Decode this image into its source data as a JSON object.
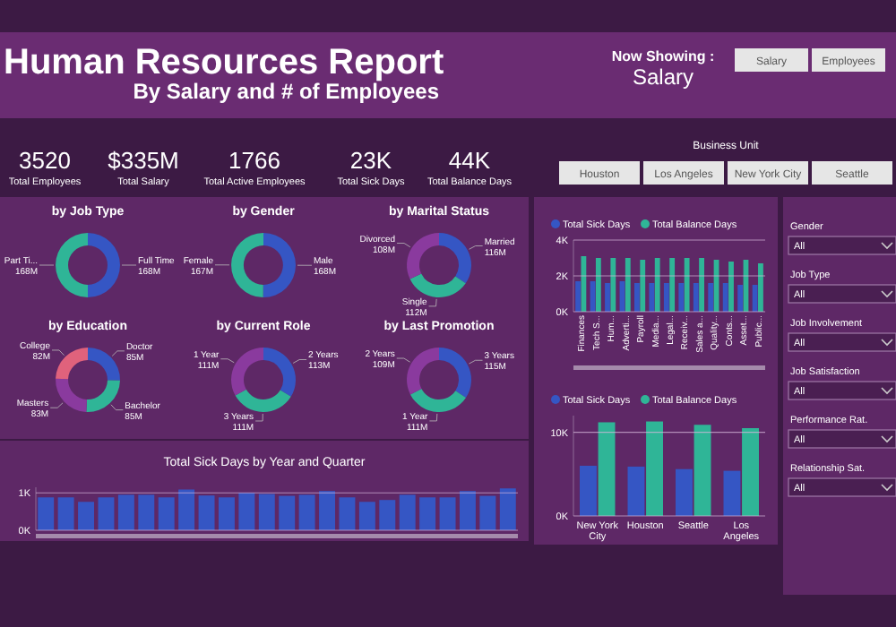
{
  "chart_data": [
    {
      "type": "other",
      "title": "Human Resources Report",
      "subtitle": "By Salary and # of Employees",
      "annotations": [
        "Now Showing :",
        "Salary",
        "Salary",
        "Employees"
      ]
    },
    {
      "type": "other",
      "annotations": [
        "3520",
        "Total Employees",
        "$335M",
        "Total Salary",
        "1766",
        "Total Active Employees",
        "23K",
        "Total Sick Days",
        "44K",
        "Total Balance Days"
      ]
    },
    {
      "type": "other",
      "title": "Business Unit",
      "annotations": [
        "Houston",
        "Los Angeles",
        "New York City",
        "Seattle"
      ]
    },
    {
      "type": "donut",
      "title": "by Job Type",
      "categories": [
        "Full Time",
        "Part Ti..."
      ],
      "values": [
        168,
        168
      ],
      "value_labels": [
        "168M",
        "168M"
      ],
      "colors": [
        "#3556c4",
        "#2fb597"
      ]
    },
    {
      "type": "donut",
      "title": "by Gender",
      "categories": [
        "Male",
        "Female"
      ],
      "values": [
        168,
        167
      ],
      "value_labels": [
        "168M",
        "167M"
      ],
      "colors": [
        "#3556c4",
        "#2fb597"
      ]
    },
    {
      "type": "donut",
      "title": "by Marital Status",
      "categories": [
        "Married",
        "Single",
        "Divorced"
      ],
      "values": [
        116,
        112,
        108
      ],
      "value_labels": [
        "116M",
        "112M",
        "108M"
      ],
      "colors": [
        "#3556c4",
        "#2fb597",
        "#8a3a9e"
      ]
    },
    {
      "type": "donut",
      "title": "by Education",
      "categories": [
        "Doctor",
        "Bachelor",
        "Masters",
        "College"
      ],
      "values": [
        85,
        85,
        83,
        82
      ],
      "value_labels": [
        "85M",
        "85M",
        "83M",
        "82M"
      ],
      "colors": [
        "#3556c4",
        "#2fb597",
        "#8a3a9e",
        "#e0627c"
      ]
    },
    {
      "type": "donut",
      "title": "by Current Role",
      "categories": [
        "2 Years",
        "3 Years",
        "1 Year"
      ],
      "values": [
        113,
        111,
        111
      ],
      "value_labels": [
        "113M",
        "111M",
        "111M"
      ],
      "colors": [
        "#3556c4",
        "#2fb597",
        "#8a3a9e"
      ]
    },
    {
      "type": "donut",
      "title": "by Last Promotion",
      "categories": [
        "3 Years",
        "1 Year",
        "2 Years"
      ],
      "values": [
        115,
        111,
        109
      ],
      "value_labels": [
        "115M",
        "111M",
        "109M"
      ],
      "colors": [
        "#3556c4",
        "#2fb597",
        "#8a3a9e"
      ]
    },
    {
      "type": "bar",
      "categories": [
        "Finances",
        "Tech S...",
        "Hum...",
        "Adverti...",
        "Payroll",
        "Media...",
        "Legal...",
        "Receiv...",
        "Sales a...",
        "Quality...",
        "Conts...",
        "Asset...",
        "Public..."
      ],
      "ylim": [
        0,
        4000
      ],
      "yticks": [
        {
          "value": 0,
          "label": "0K"
        },
        {
          "value": 2000,
          "label": "2K"
        },
        {
          "value": 4000,
          "label": "4K"
        }
      ],
      "grid": "y",
      "legend": "top left",
      "series": [
        {
          "name": "Total Sick Days",
          "color": "#3556c4",
          "values": [
            1700,
            1700,
            1600,
            1700,
            1600,
            1600,
            1600,
            1600,
            1600,
            1600,
            1600,
            1500,
            1500
          ]
        },
        {
          "name": "Total Balance Days",
          "color": "#2fb597",
          "values": [
            3100,
            3000,
            3000,
            3000,
            2900,
            3000,
            3000,
            3000,
            3000,
            2900,
            2800,
            2900,
            2700
          ]
        }
      ]
    },
    {
      "type": "bar",
      "categories": [
        "New York City",
        "Houston",
        "Seattle",
        "Los Angeles"
      ],
      "ylim": [
        0,
        12000
      ],
      "yticks": [
        {
          "value": 0,
          "label": "0K"
        },
        {
          "value": 10000,
          "label": "10K"
        }
      ],
      "grid": "y",
      "legend": "top left",
      "series": [
        {
          "name": "Total Sick Days",
          "color": "#3556c4",
          "values": [
            6000,
            5900,
            5600,
            5400
          ]
        },
        {
          "name": "Total Balance Days",
          "color": "#2fb597",
          "values": [
            11200,
            11300,
            10900,
            10500
          ]
        }
      ]
    },
    {
      "type": "bar",
      "title": "Total Sick Days by Year and Quarter",
      "categories": [
        null,
        null,
        null,
        null,
        null,
        null,
        null,
        null,
        null,
        null,
        null,
        null,
        null,
        null,
        null,
        null,
        null,
        null,
        null,
        null,
        null,
        null,
        null,
        null
      ],
      "ylim": [
        0,
        1150
      ],
      "yticks": [
        {
          "value": 0,
          "label": "0K"
        },
        {
          "value": 1000,
          "label": "1K"
        }
      ],
      "grid": "y",
      "series": [
        {
          "color": "#3556c4",
          "values": [
            880,
            880,
            760,
            880,
            950,
            950,
            880,
            1090,
            930,
            880,
            1000,
            970,
            920,
            950,
            1050,
            880,
            760,
            810,
            950,
            880,
            880,
            1050,
            920,
            1120
          ]
        }
      ]
    },
    {
      "type": "other",
      "annotations": [
        "Gender",
        "All",
        "Job Type",
        "All",
        "Job Involvement",
        "All",
        "Job Satisfaction",
        "All",
        "Performance Rat.",
        "All",
        "Relationship Sat.",
        "All"
      ]
    }
  ]
}
